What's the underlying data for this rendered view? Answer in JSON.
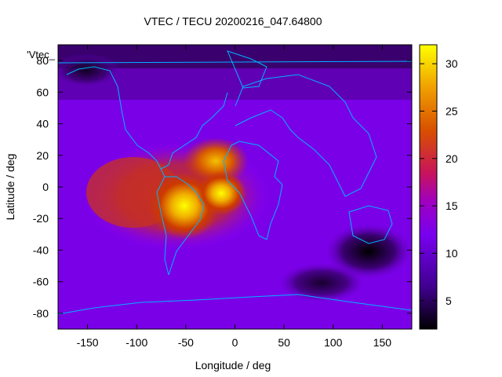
{
  "chart_data": {
    "type": "heatmap",
    "title": "VTEC / TECU 20200216_047.64800",
    "xlabel": "Longitude / deg",
    "ylabel": "Latitude / deg",
    "xlim": [
      -180,
      180
    ],
    "ylim": [
      -90,
      90
    ],
    "xticks": [
      -150,
      -100,
      -50,
      0,
      50,
      100,
      150
    ],
    "yticks": [
      -80,
      -60,
      -40,
      -20,
      0,
      20,
      40,
      60,
      80
    ],
    "colorbar": {
      "min": 2,
      "max": 32,
      "ticks": [
        5,
        10,
        15,
        20,
        25,
        30
      ]
    },
    "legend_entry": "'Vtec_",
    "overlay": "coastlines",
    "peaks": [
      {
        "lon": -45,
        "lat": -12,
        "value": 31
      },
      {
        "lon": -10,
        "lat": -5,
        "value": 30
      },
      {
        "lon": -25,
        "lat": 18,
        "value": 25
      }
    ]
  },
  "colors": {
    "coastline": "#00b4ff",
    "low": "#000000",
    "mid_low": "#6a00c8",
    "mid": "#8c00ff",
    "mid_high": "#c83200",
    "high": "#e68c00",
    "max": "#ffff00"
  }
}
